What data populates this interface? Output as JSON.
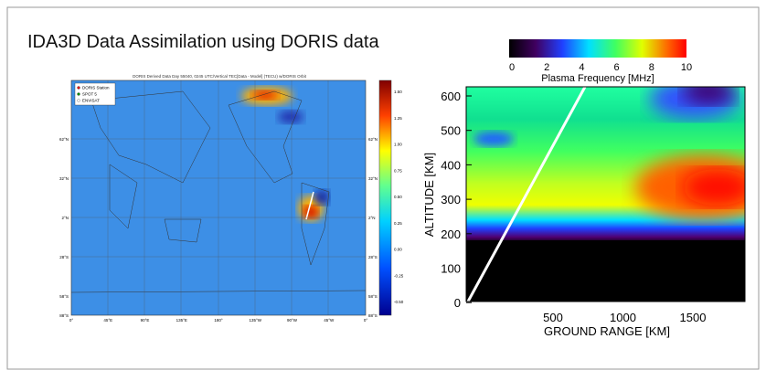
{
  "header": {
    "title": "IDA3D Data Assimilation using DORIS data"
  },
  "left_figure": {
    "title": "DORIS Derived Data Day 55040, 0245 UTC/Vertical TEC[Data - Model] (TECU) w/DORIS Orbit",
    "legend": [
      "DORIS Station",
      "SPOT 5",
      "ENVISAT"
    ],
    "lat_labels": [
      "62°N",
      "32°N",
      "2°N",
      "28°S",
      "58°S",
      "88°S"
    ],
    "lon_labels": [
      "0°",
      "45°E",
      "90°E",
      "135°E",
      "180°",
      "135°W",
      "90°W",
      "45°W",
      "0°"
    ],
    "colorbar_ticks": [
      "1.50",
      "1.25",
      "1.00",
      "0.75",
      "0.50",
      "0.25",
      "0.00",
      "-0.25",
      "-0.50"
    ]
  },
  "right_figure": {
    "colorbar_label": "Plasma Frequency [MHz]",
    "colorbar_ticks": [
      "0",
      "2",
      "4",
      "6",
      "8",
      "10"
    ],
    "ylabel": "ALTITUDE [KM]",
    "xlabel": "GROUND RANGE [KM]",
    "yticks": [
      "600",
      "500",
      "400",
      "300",
      "200",
      "100",
      "0"
    ],
    "xticks": [
      "500",
      "1000",
      "1500"
    ]
  }
}
